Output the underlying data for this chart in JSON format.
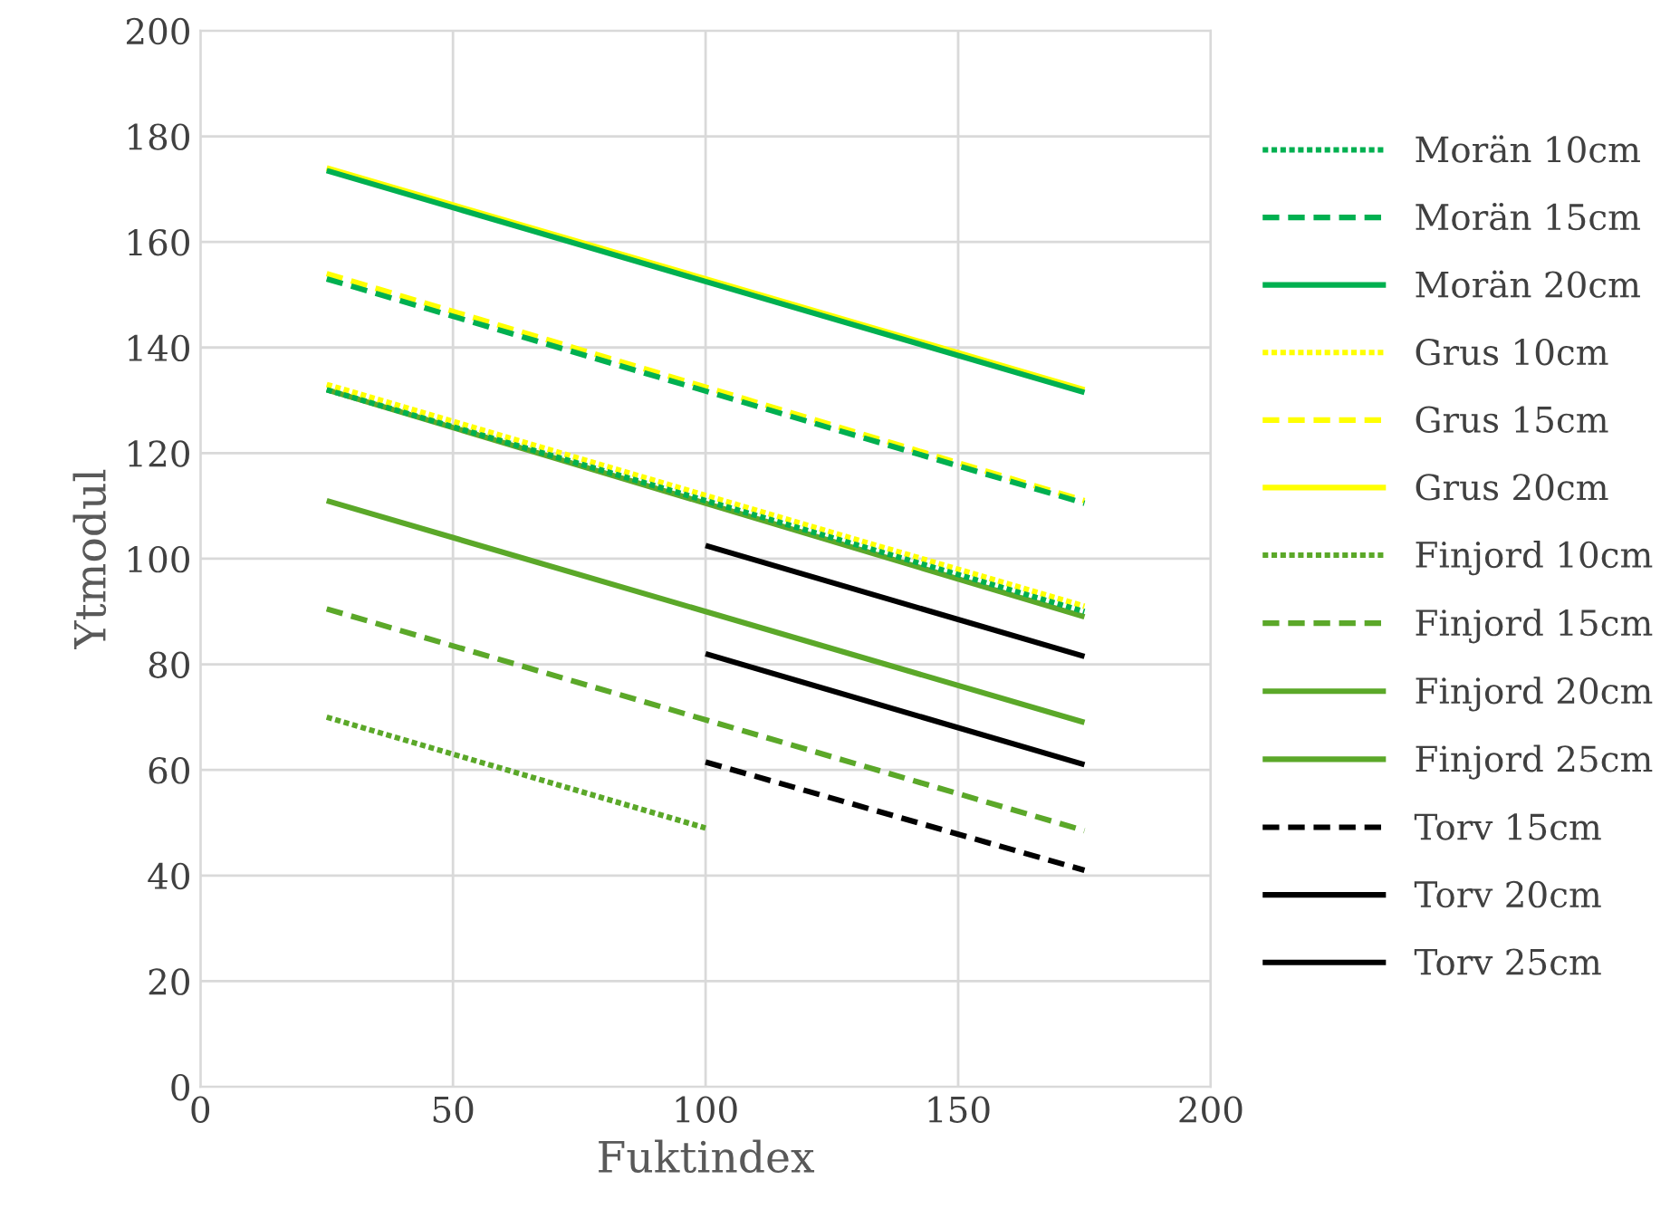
{
  "chart_data": {
    "type": "line",
    "xlabel": "Fuktindex",
    "ylabel": "Ytmodul",
    "xlim": [
      0,
      200
    ],
    "ylim": [
      0,
      200
    ],
    "xticks": [
      0,
      50,
      100,
      150,
      200
    ],
    "yticks": [
      0,
      20,
      40,
      60,
      80,
      100,
      120,
      140,
      160,
      180,
      200
    ],
    "grid": true,
    "legend": "right",
    "marker": "none",
    "series": [
      {
        "name": "Morän 10cm",
        "color": "#00b050",
        "line_style": "dotted",
        "x": [
          25,
          175
        ],
        "values": [
          132,
          90
        ]
      },
      {
        "name": "Morän 15cm",
        "color": "#00b050",
        "line_style": "dashed",
        "x": [
          25,
          175
        ],
        "values": [
          153,
          110.5
        ]
      },
      {
        "name": "Morän 20cm",
        "color": "#00b050",
        "line_style": "solid",
        "x": [
          25,
          175
        ],
        "values": [
          173.5,
          131.5
        ]
      },
      {
        "name": "Grus 10cm",
        "color": "#ffff00",
        "line_style": "dotted",
        "x": [
          25,
          175
        ],
        "values": [
          133,
          91
        ]
      },
      {
        "name": "Grus 15cm",
        "color": "#ffff00",
        "line_style": "dashed",
        "x": [
          25,
          175
        ],
        "values": [
          154,
          111
        ]
      },
      {
        "name": "Grus 20cm",
        "color": "#ffff00",
        "line_style": "solid",
        "x": [
          25,
          175
        ],
        "values": [
          174,
          132
        ]
      },
      {
        "name": "Finjord 10cm",
        "color": "#5ba829",
        "line_style": "dotted",
        "x": [
          25,
          100
        ],
        "values": [
          70,
          49
        ]
      },
      {
        "name": "Finjord 15cm",
        "color": "#5ba829",
        "line_style": "dashed",
        "x": [
          25,
          175
        ],
        "values": [
          90.5,
          48.5
        ]
      },
      {
        "name": "Finjord 20cm",
        "color": "#5ba829",
        "line_style": "solid",
        "x": [
          25,
          175
        ],
        "values": [
          111,
          69
        ]
      },
      {
        "name": "Finjord 25cm",
        "color": "#5ba829",
        "line_style": "solid",
        "x": [
          25,
          175
        ],
        "values": [
          132,
          89
        ]
      },
      {
        "name": "Torv 15cm",
        "color": "#000000",
        "line_style": "dashed",
        "x": [
          100,
          175
        ],
        "values": [
          61.5,
          41
        ]
      },
      {
        "name": "Torv 20cm",
        "color": "#000000",
        "line_style": "solid",
        "x": [
          100,
          175
        ],
        "values": [
          82,
          61
        ]
      },
      {
        "name": "Torv 25cm",
        "color": "#000000",
        "line_style": "solid",
        "x": [
          100,
          175
        ],
        "values": [
          102.5,
          81.5
        ]
      }
    ]
  }
}
